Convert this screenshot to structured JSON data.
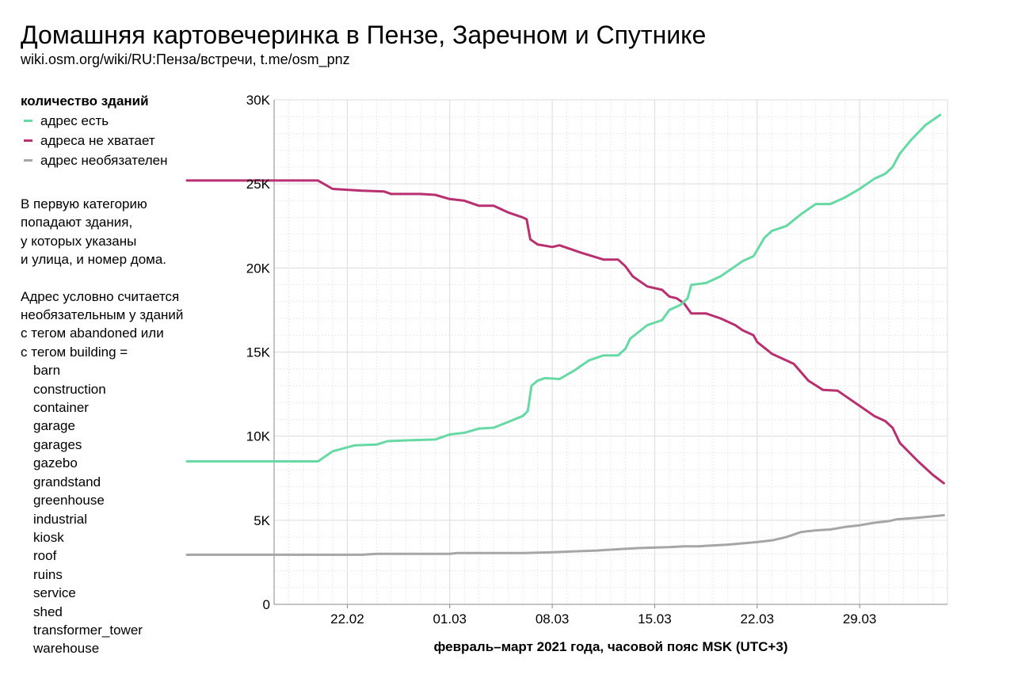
{
  "title": "Домашняя картовечеринка в Пензе, Заречном и Спутнике",
  "subtitle": "wiki.osm.org/wiki/RU:Пенза/встречи, t.me/osm_pnz",
  "legend": {
    "title": "количество зданий",
    "items": [
      {
        "label": "адрес есть",
        "color": "#66d9a5"
      },
      {
        "label": "адреса не хватает",
        "color": "#b8306f"
      },
      {
        "label": "адрес необязателен",
        "color": "#a6a6a6"
      }
    ]
  },
  "note": {
    "paragraph1": [
      "В первую категорию",
      "попадают здания,",
      "у которых указаны",
      "и улица, и номер дома."
    ],
    "paragraph2": [
      "Адрес условно считается",
      "необязательным у зданий",
      "с тегом abandoned или",
      "с тегом building ="
    ],
    "tags": [
      "barn",
      "construction",
      "container",
      "garage",
      "garages",
      "gazebo",
      "grandstand",
      "greenhouse",
      "industrial",
      "kiosk",
      "roof",
      "ruins",
      "service",
      "shed",
      "transformer_tower",
      "warehouse"
    ]
  },
  "chart_data": {
    "type": "line",
    "xlabel": "февраль–март 2021 года, часовой пояс MSK (UTC+3)",
    "ylabel": "",
    "x_ticks": [
      "22.02",
      "01.03",
      "08.03",
      "15.03",
      "22.03",
      "29.03"
    ],
    "y_ticks": [
      "0",
      "5K",
      "10K",
      "15K",
      "20K",
      "25K",
      "30K"
    ],
    "ylim": [
      0,
      30000
    ],
    "grid": true,
    "legend_position": "left",
    "series": [
      {
        "name": "адрес есть",
        "color": "#66d9a5",
        "points": [
          [
            "17.02 00:00",
            8500
          ],
          [
            "19.02 00:00",
            8500
          ],
          [
            "20.02 00:00",
            8500
          ],
          [
            "21.02 00:00",
            9100
          ],
          [
            "22.02 12:00",
            9450
          ],
          [
            "24.02 00:00",
            9500
          ],
          [
            "24.02 18:00",
            9700
          ],
          [
            "26.02 00:00",
            9750
          ],
          [
            "28.02 00:00",
            9800
          ],
          [
            "01.03 00:00",
            10100
          ],
          [
            "02.03 00:00",
            10200
          ],
          [
            "03.03 00:00",
            10450
          ],
          [
            "04.03 00:00",
            10500
          ],
          [
            "05.03 00:00",
            10850
          ],
          [
            "06.03 00:00",
            11200
          ],
          [
            "06.03 08:00",
            11500
          ],
          [
            "06.03 14:00",
            13000
          ],
          [
            "07.03 00:00",
            13300
          ],
          [
            "07.03 12:00",
            13450
          ],
          [
            "08.03 12:00",
            13400
          ],
          [
            "09.03 12:00",
            13900
          ],
          [
            "10.03 12:00",
            14500
          ],
          [
            "11.03 12:00",
            14800
          ],
          [
            "12.03 12:00",
            14800
          ],
          [
            "13.03 00:00",
            15200
          ],
          [
            "13.03 08:00",
            15800
          ],
          [
            "14.03 12:00",
            16600
          ],
          [
            "15.03 12:00",
            16900
          ],
          [
            "16.03 00:00",
            17500
          ],
          [
            "16.03 18:00",
            17800
          ],
          [
            "17.03 06:00",
            18200
          ],
          [
            "17.03 12:00",
            19000
          ],
          [
            "18.03 12:00",
            19100
          ],
          [
            "19.03 12:00",
            19500
          ],
          [
            "20.03 12:00",
            20100
          ],
          [
            "21.03 00:00",
            20400
          ],
          [
            "21.03 18:00",
            20700
          ],
          [
            "22.03 12:00",
            21800
          ],
          [
            "23.03 00:00",
            22200
          ],
          [
            "24.03 00:00",
            22500
          ],
          [
            "25.03 00:00",
            23200
          ],
          [
            "26.03 00:00",
            23800
          ],
          [
            "27.03 00:00",
            23800
          ],
          [
            "28.03 00:00",
            24200
          ],
          [
            "29.03 00:00",
            24700
          ],
          [
            "30.03 00:00",
            25300
          ],
          [
            "30.03 18:00",
            25600
          ],
          [
            "31.03 06:00",
            26000
          ],
          [
            "31.03 18:00",
            26800
          ],
          [
            "01.04 12:00",
            27600
          ],
          [
            "02.04 12:00",
            28500
          ],
          [
            "03.04 12:00",
            29100
          ]
        ]
      },
      {
        "name": "адреса не хватает",
        "color": "#b8306f",
        "points": [
          [
            "17.02 00:00",
            25200
          ],
          [
            "20.02 00:00",
            25200
          ],
          [
            "21.02 00:00",
            24700
          ],
          [
            "23.02 00:00",
            24600
          ],
          [
            "24.02 12:00",
            24550
          ],
          [
            "25.02 00:00",
            24400
          ],
          [
            "27.02 00:00",
            24400
          ],
          [
            "28.02 00:00",
            24350
          ],
          [
            "01.03 00:00",
            24100
          ],
          [
            "02.03 00:00",
            24000
          ],
          [
            "03.03 00:00",
            23700
          ],
          [
            "04.03 00:00",
            23700
          ],
          [
            "05.03 00:00",
            23300
          ],
          [
            "06.03 00:00",
            23000
          ],
          [
            "06.03 06:00",
            22900
          ],
          [
            "06.03 12:00",
            21700
          ],
          [
            "07.03 00:00",
            21400
          ],
          [
            "08.03 00:00",
            21250
          ],
          [
            "08.03 12:00",
            21350
          ],
          [
            "10.03 00:00",
            20900
          ],
          [
            "11.03 12:00",
            20500
          ],
          [
            "12.03 12:00",
            20500
          ],
          [
            "13.03 00:00",
            20100
          ],
          [
            "13.03 12:00",
            19500
          ],
          [
            "14.03 12:00",
            18900
          ],
          [
            "15.03 12:00",
            18700
          ],
          [
            "16.03 00:00",
            18300
          ],
          [
            "16.03 12:00",
            18200
          ],
          [
            "17.03 00:00",
            17900
          ],
          [
            "17.03 12:00",
            17300
          ],
          [
            "18.03 12:00",
            17300
          ],
          [
            "19.03 12:00",
            17000
          ],
          [
            "20.03 12:00",
            16600
          ],
          [
            "21.03 00:00",
            16300
          ],
          [
            "21.03 18:00",
            16000
          ],
          [
            "22.03 00:00",
            15600
          ],
          [
            "23.03 00:00",
            14900
          ],
          [
            "24.03 12:00",
            14300
          ],
          [
            "25.03 12:00",
            13300
          ],
          [
            "26.03 12:00",
            12750
          ],
          [
            "27.03 12:00",
            12700
          ],
          [
            "28.03 00:00",
            12400
          ],
          [
            "29.03 00:00",
            11800
          ],
          [
            "30.03 00:00",
            11200
          ],
          [
            "30.03 18:00",
            10900
          ],
          [
            "31.03 06:00",
            10500
          ],
          [
            "31.03 18:00",
            9600
          ],
          [
            "02.04 00:00",
            8500
          ],
          [
            "03.04 00:00",
            7700
          ],
          [
            "03.04 18:00",
            7200
          ]
        ]
      },
      {
        "name": "адрес необязателен",
        "color": "#a6a6a6",
        "points": [
          [
            "17.02 00:00",
            2950
          ],
          [
            "23.02 00:00",
            2950
          ],
          [
            "24.02 00:00",
            3000
          ],
          [
            "01.03 00:00",
            3000
          ],
          [
            "01.03 12:00",
            3050
          ],
          [
            "06.03 00:00",
            3050
          ],
          [
            "08.03 00:00",
            3100
          ],
          [
            "09.03 12:00",
            3150
          ],
          [
            "11.03 00:00",
            3200
          ],
          [
            "12.03 00:00",
            3250
          ],
          [
            "13.03 00:00",
            3300
          ],
          [
            "14.03 00:00",
            3350
          ],
          [
            "16.03 00:00",
            3400
          ],
          [
            "17.03 00:00",
            3450
          ],
          [
            "18.03 00:00",
            3450
          ],
          [
            "20.03 00:00",
            3550
          ],
          [
            "22.03 00:00",
            3700
          ],
          [
            "23.03 00:00",
            3800
          ],
          [
            "24.03 00:00",
            4000
          ],
          [
            "25.03 00:00",
            4300
          ],
          [
            "26.03 00:00",
            4400
          ],
          [
            "27.03 00:00",
            4450
          ],
          [
            "28.03 00:00",
            4600
          ],
          [
            "29.03 00:00",
            4700
          ],
          [
            "30.03 00:00",
            4850
          ],
          [
            "31.03 00:00",
            4950
          ],
          [
            "31.03 12:00",
            5050
          ],
          [
            "02.04 00:00",
            5150
          ],
          [
            "03.04 18:00",
            5300
          ]
        ]
      }
    ]
  }
}
